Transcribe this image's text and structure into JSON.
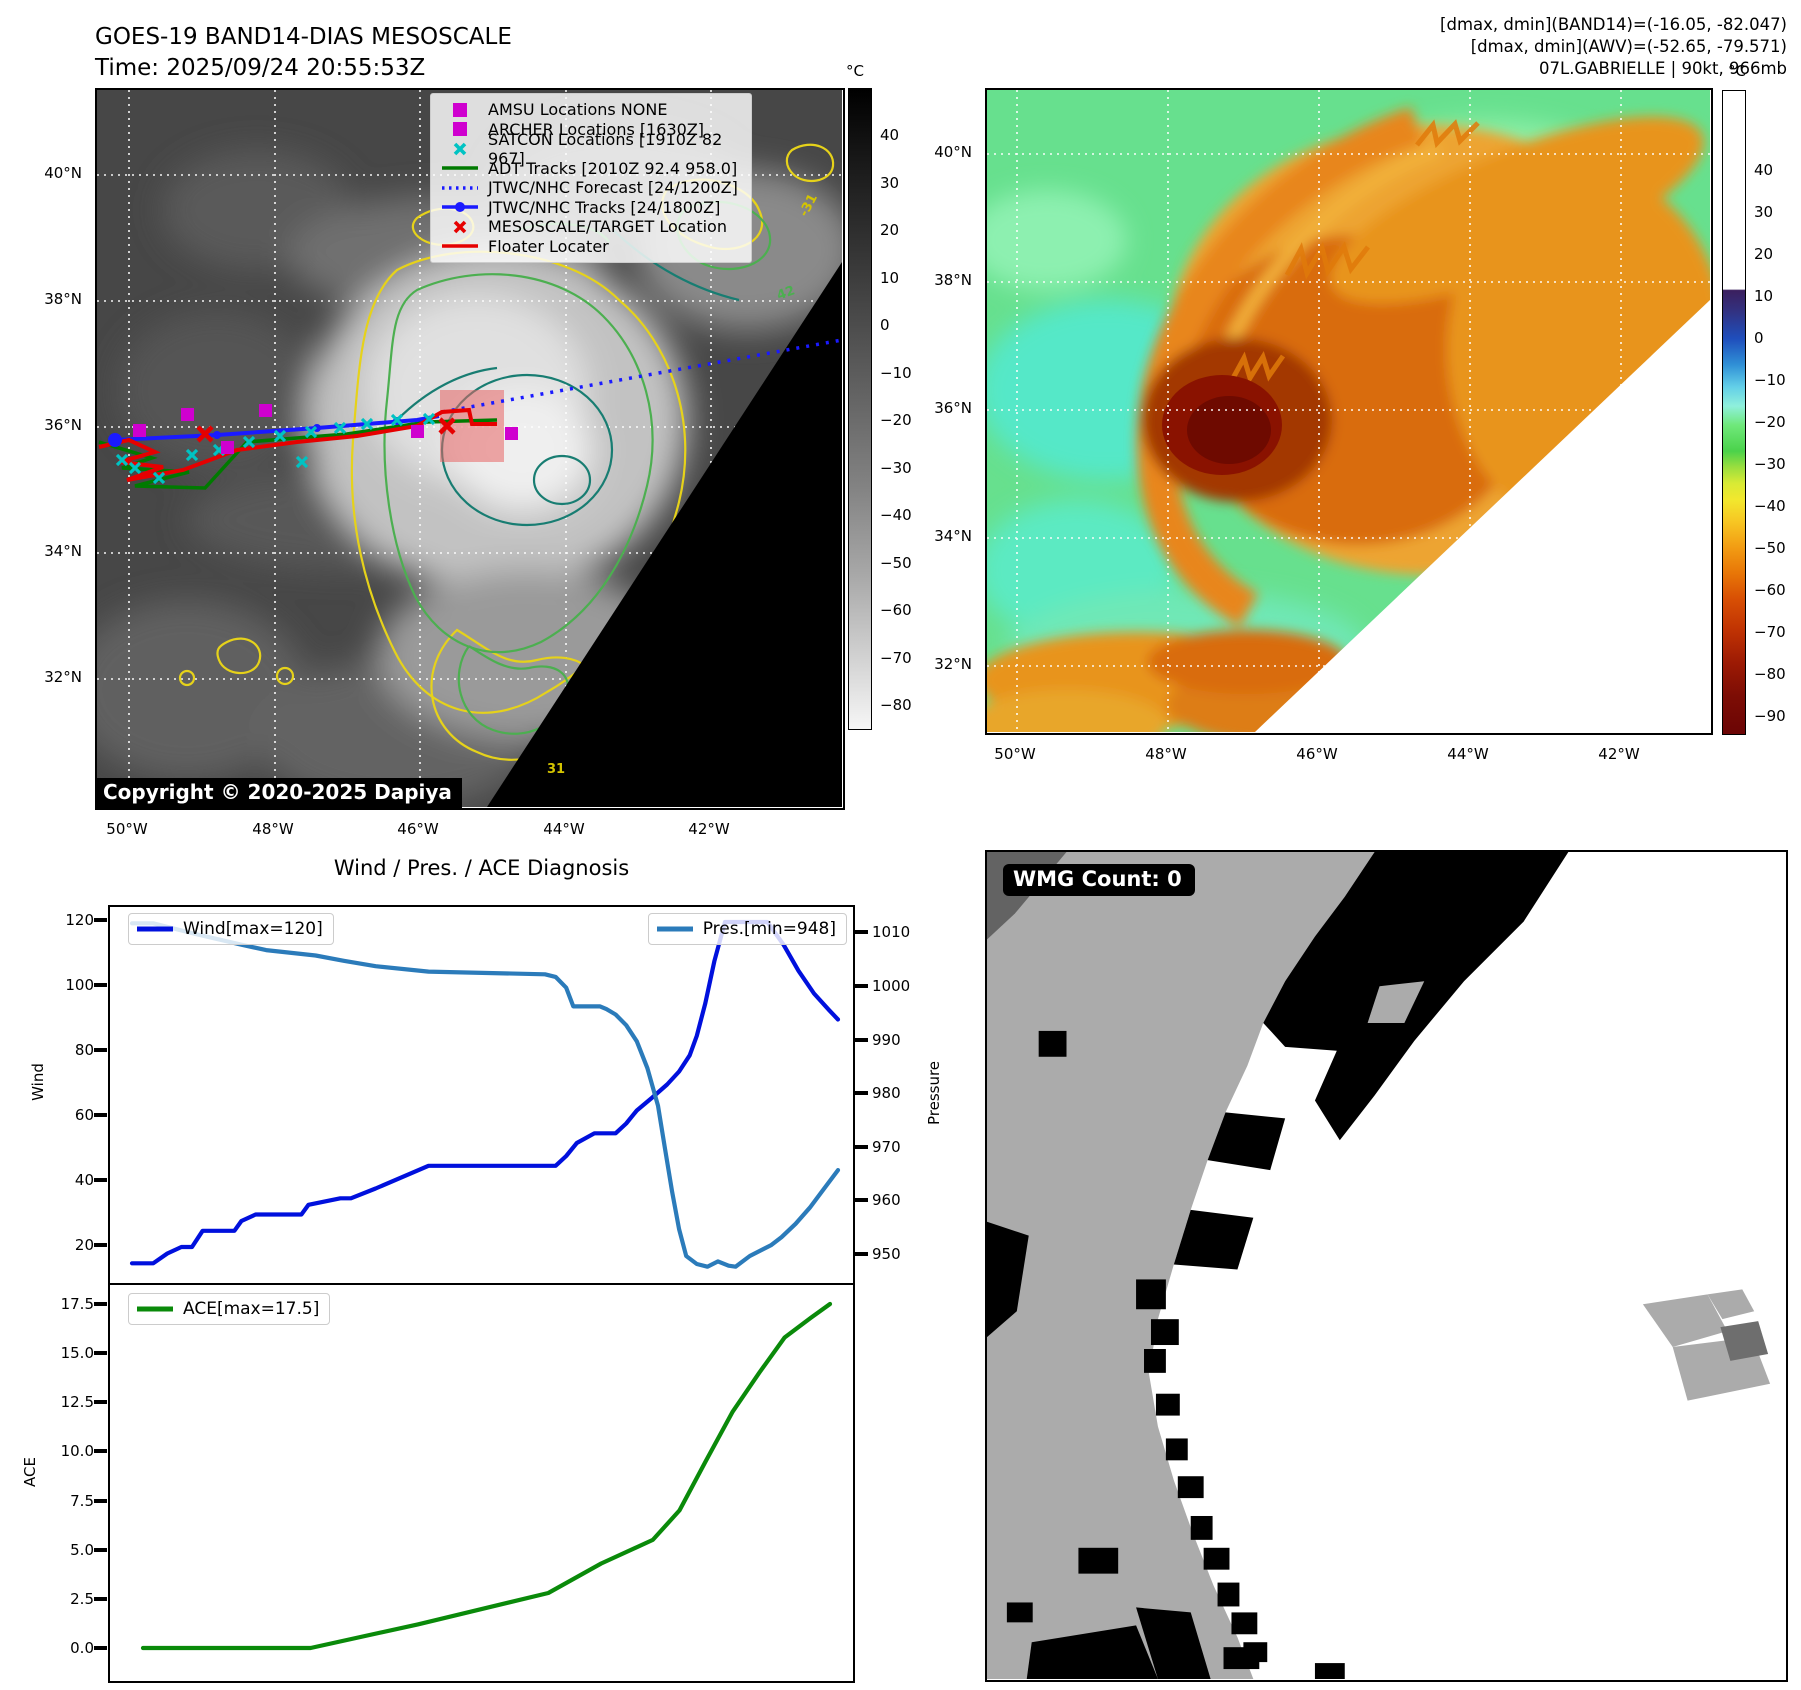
{
  "header": {
    "title_line1": "GOES-19 BAND14-DIAS MESOSCALE",
    "title_line2": "Time: 2025/09/24 20:55:53Z",
    "right_line1": "[dmax, dmin](BAND14)=(-16.05, -82.047)",
    "right_line2": "[dmax, dmin](AWV)=(-52.65, -79.571)",
    "right_line3": "07L.GABRIELLE | 90kt, 966mb"
  },
  "panels": {
    "band14": {
      "lat_ticks": [
        "40°N",
        "38°N",
        "36°N",
        "34°N",
        "32°N"
      ],
      "lon_ticks": [
        "50°W",
        "48°W",
        "46°W",
        "44°W",
        "42°W"
      ],
      "colorbar": {
        "unit": "°C",
        "ticks": [
          "40",
          "30",
          "20",
          "10",
          "0",
          "−10",
          "−20",
          "−30",
          "−40",
          "−50",
          "−60",
          "−70",
          "−80"
        ]
      },
      "legend": [
        {
          "marker": "square",
          "color": "#cf00cf",
          "label": "AMSU Locations NONE"
        },
        {
          "marker": "square",
          "color": "#cf00cf",
          "label": "ARCHER Locations [1630Z]"
        },
        {
          "marker": "x",
          "color": "#00c3c3",
          "label": "SATCON Locations [1910Z 82 967]"
        },
        {
          "marker": "line",
          "color": "#007a00",
          "label": "ADT Tracks [2010Z 92.4 958.0]"
        },
        {
          "marker": "dotted",
          "color": "#1a1aff",
          "label": "JTWC/NHC Forecast [24/1200Z]"
        },
        {
          "marker": "line-dot",
          "color": "#1a1aff",
          "label": "JTWC/NHC Tracks [24/1800Z]"
        },
        {
          "marker": "x",
          "color": "#e60000",
          "label": "MESOSCALE/TARGET Location"
        },
        {
          "marker": "line",
          "color": "#e60000",
          "label": "Floater Locater"
        }
      ],
      "copyright": "Copyright © 2020-2025 Dapiya",
      "contour_labels": [
        {
          "text": "-31"
        },
        {
          "text": "42"
        },
        {
          "text": "31"
        }
      ]
    },
    "awv": {
      "lat_ticks": [
        "40°N",
        "38°N",
        "36°N",
        "34°N",
        "32°N"
      ],
      "lon_ticks": [
        "50°W",
        "48°W",
        "46°W",
        "44°W",
        "42°W"
      ],
      "colorbar": {
        "unit": "°C",
        "ticks": [
          "40",
          "30",
          "20",
          "10",
          "0",
          "−10",
          "−20",
          "−30",
          "−40",
          "−50",
          "−60",
          "−70",
          "−80",
          "−90"
        ]
      }
    },
    "wmg": {
      "count_label": "WMG Count: 0"
    }
  },
  "chart_data": [
    {
      "type": "line",
      "title": "Wind / Pres. / ACE Diagnosis",
      "grid": false,
      "axes": {
        "left": {
          "label": "Wind",
          "ticks": [
            "120",
            "100",
            "80",
            "60",
            "40",
            "20"
          ],
          "range": [
            13,
            122
          ]
        },
        "right": {
          "label": "Pressure",
          "ticks": [
            "1010",
            "1000",
            "990",
            "980",
            "970",
            "960",
            "950"
          ],
          "range": [
            945,
            1016
          ]
        }
      },
      "series": [
        {
          "name": "Wind[max=120]",
          "color": "#0010dd",
          "axis": "left",
          "x": [
            0,
            0.03,
            0.05,
            0.07,
            0.085,
            0.1,
            0.105,
            0.145,
            0.155,
            0.175,
            0.185,
            0.24,
            0.25,
            0.295,
            0.31,
            0.345,
            0.42,
            0.6,
            0.615,
            0.63,
            0.655,
            0.685,
            0.7,
            0.715,
            0.737,
            0.758,
            0.775,
            0.79,
            0.8,
            0.812,
            0.825,
            0.84,
            0.9,
            0.923,
            0.944,
            0.966,
            0.987,
            1
          ],
          "values": [
            15,
            15,
            18,
            20,
            20,
            25,
            25,
            25,
            28,
            30,
            30,
            30,
            33,
            35,
            35,
            38,
            45,
            45,
            48,
            52,
            55,
            55,
            58,
            62,
            66,
            70,
            74,
            79,
            85,
            95,
            108,
            120,
            120,
            113,
            105,
            98,
            93,
            90
          ]
        },
        {
          "name": "Pres.[min=948]",
          "color": "#2b7bba",
          "axis": "right",
          "x": [
            0,
            0.03,
            0.09,
            0.155,
            0.19,
            0.26,
            0.3,
            0.345,
            0.42,
            0.585,
            0.6,
            0.615,
            0.625,
            0.663,
            0.672,
            0.685,
            0.7,
            0.715,
            0.73,
            0.745,
            0.755,
            0.765,
            0.775,
            0.785,
            0.8,
            0.815,
            0.83,
            0.845,
            0.855,
            0.875,
            0.89,
            0.905,
            0.92,
            0.94,
            0.96,
            0.98,
            1
          ],
          "values": [
            1012,
            1012,
            1010,
            1008,
            1007,
            1006,
            1005,
            1004,
            1003,
            1002.5,
            1002,
            1000,
            996.5,
            996.5,
            996,
            995,
            993,
            990,
            985,
            978,
            970,
            962,
            955,
            950,
            948.5,
            948,
            949,
            948.2,
            948,
            950,
            951,
            952,
            953.5,
            956,
            959,
            962.5,
            966
          ]
        }
      ]
    },
    {
      "type": "line",
      "title": "",
      "grid": false,
      "axes": {
        "left": {
          "label": "ACE",
          "ticks": [
            "17.5",
            "15.0",
            "12.5",
            "10.0",
            "7.5",
            "5.0",
            "2.5",
            "0.0"
          ],
          "range": [
            -0.9,
            18.3
          ]
        }
      },
      "series": [
        {
          "name": "ACE[max=17.5]",
          "color": "#0a8a0a",
          "axis": "left",
          "x": [
            0,
            0.244,
            0.4,
            0.59,
            0.667,
            0.742,
            0.781,
            0.819,
            0.858,
            0.897,
            0.934,
            0.972,
            1
          ],
          "values": [
            0,
            0,
            1.2,
            2.8,
            4.3,
            5.5,
            7,
            9.5,
            12,
            14,
            15.8,
            16.8,
            17.5
          ]
        }
      ]
    }
  ],
  "colors": {
    "wind_line": "#0010dd",
    "pressure_line": "#2b7bba",
    "ace_line": "#0a8a0a",
    "track_red": "#e60000",
    "track_blue": "#1a1aff",
    "track_green": "#007a00",
    "satcon_cyan": "#00c3c3",
    "archer_magenta": "#cf00cf",
    "target_box": "rgba(232,100,100,0.55)",
    "wmg_gray": "#ababab",
    "wmg_dark_gray": "#636363"
  }
}
